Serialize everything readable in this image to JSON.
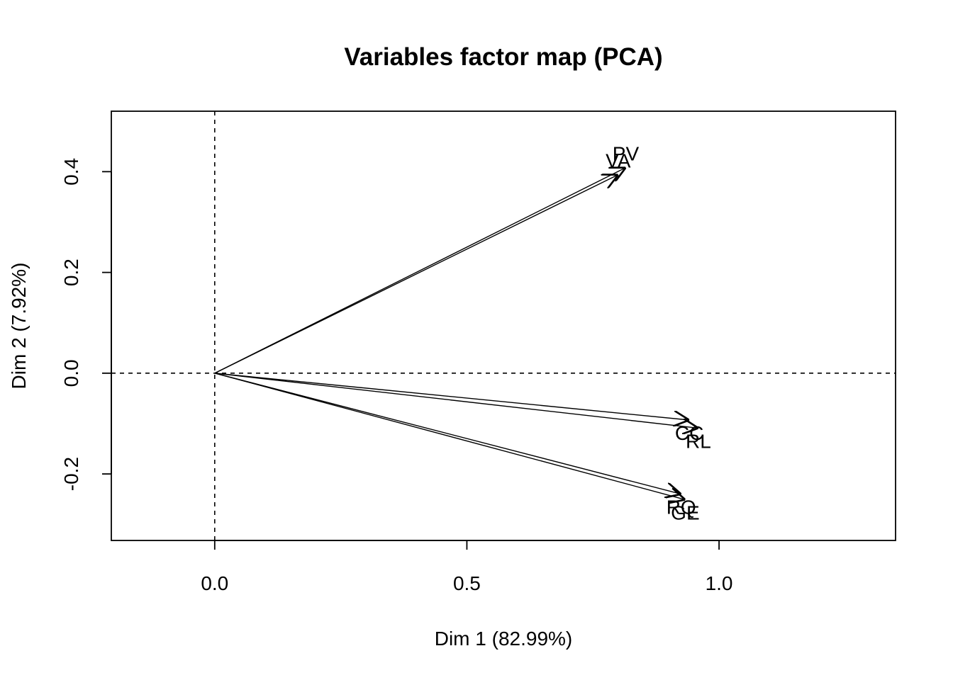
{
  "chart_data": {
    "type": "scatter",
    "subtype": "pca-variables-factor-map",
    "title": "Variables factor map (PCA)",
    "xlabel": "Dim 1 (82.99%)",
    "ylabel": "Dim 2 (7.92%)",
    "xlim": [
      -0.205,
      1.35
    ],
    "ylim": [
      -0.332,
      0.52
    ],
    "x_ticks": [
      0.0,
      0.5,
      1.0
    ],
    "x_tick_labels": [
      "0.0",
      "0.5",
      "1.0"
    ],
    "y_ticks": [
      -0.2,
      0.0,
      0.2,
      0.4
    ],
    "y_tick_labels": [
      "-0.2",
      "0.0",
      "0.2",
      "0.4"
    ],
    "reference_lines": {
      "x": 0,
      "y": 0,
      "style": "dashed"
    },
    "grid": false,
    "arrow_color": "#000000",
    "variables": [
      {
        "name": "PV",
        "x": 0.815,
        "y": 0.408
      },
      {
        "name": "VA",
        "x": 0.8,
        "y": 0.394
      },
      {
        "name": "CC",
        "x": 0.941,
        "y": -0.093
      },
      {
        "name": "RL",
        "x": 0.959,
        "y": -0.109
      },
      {
        "name": "RQ",
        "x": 0.925,
        "y": -0.24
      },
      {
        "name": "GE",
        "x": 0.933,
        "y": -0.251
      }
    ]
  }
}
